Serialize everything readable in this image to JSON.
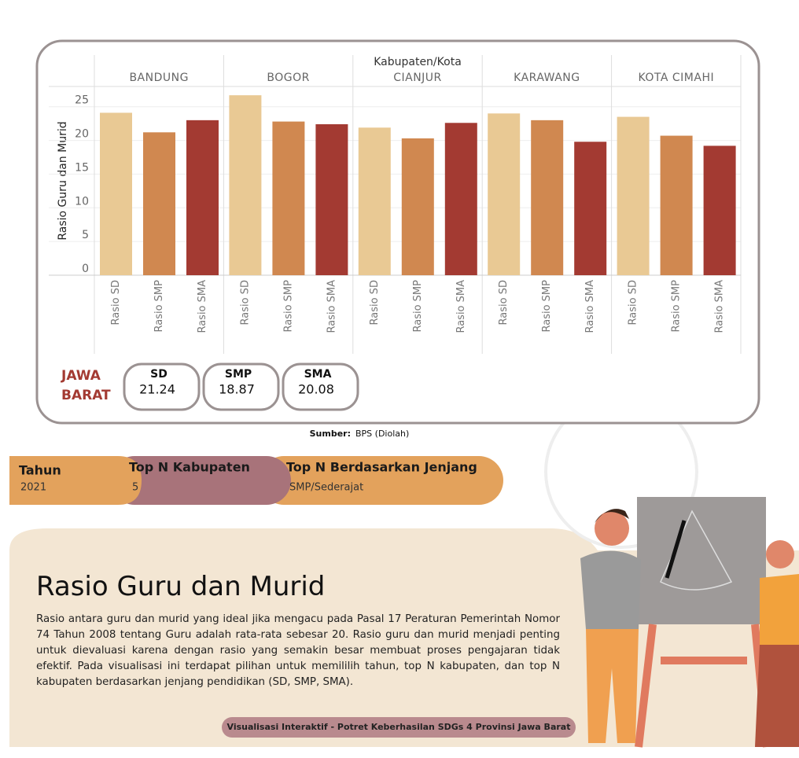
{
  "chart_data": {
    "type": "bar",
    "title": "Kabupaten/Kota",
    "y_label": "Rasio Guru dan Murid",
    "categories": [
      "BANDUNG",
      "BOGOR",
      "CIANJUR",
      "KARAWANG",
      "KOTA CIMAHI"
    ],
    "series": [
      {
        "name": "Rasio SD",
        "color": "#e9c994",
        "values": [
          24.1,
          26.7,
          21.9,
          24.0,
          23.5
        ]
      },
      {
        "name": "Rasio SMP",
        "color": "#d08850",
        "values": [
          21.2,
          22.8,
          20.3,
          23.0,
          20.7
        ]
      },
      {
        "name": "Rasio SMA",
        "color": "#a33a32",
        "values": [
          23.0,
          22.4,
          22.6,
          19.8,
          19.2
        ]
      }
    ],
    "ylim": [
      0,
      28
    ],
    "yticks": [
      0,
      5,
      10,
      15,
      20,
      25
    ],
    "grid": true
  },
  "summary": {
    "region": [
      "JAWA",
      "BARAT"
    ],
    "cards": [
      {
        "label": "SD",
        "value": "21.24"
      },
      {
        "label": "SMP",
        "value": "18.87"
      },
      {
        "label": "SMA",
        "value": "20.08"
      }
    ]
  },
  "source": {
    "label": "Sumber:",
    "text": "BPS (Diolah)"
  },
  "filters": [
    {
      "label": "Tahun",
      "value": "2021"
    },
    {
      "label": "Top N Kabupaten",
      "value": "5"
    },
    {
      "label": "Top N Berdasarkan Jenjang",
      "value": "SMP/Sederajat"
    }
  ],
  "heading": "Rasio Guru dan Murid",
  "description": "Rasio antara guru dan murid yang ideal jika mengacu pada Pasal 17 Peraturan Pemerintah Nomor 74 Tahun 2008 tentang Guru adalah rata-rata sebesar 20. Rasio guru dan murid menjadi penting untuk dievaluasi karena dengan rasio yang semakin besar membuat proses pengajaran tidak efektif. Pada visualisasi ini terdapat pilihan untuk memililih tahun, top N kabupaten, dan top N kabupaten berdasarkan jenjang pendidikan (SD, SMP, SMA).",
  "footer": "Visualisasi Interaktif - Potret Keberhasilan SDGs 4 Provinsi Jawa Barat"
}
